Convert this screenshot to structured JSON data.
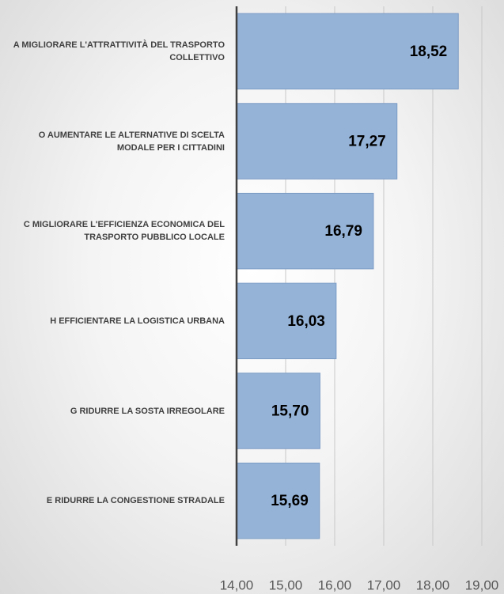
{
  "chart_data": {
    "type": "bar",
    "orientation": "horizontal",
    "categories": [
      "A MIGLIORARE L'ATTRATTIVITÀ DEL TRASPORTO COLLETTIVO",
      "O AUMENTARE LE ALTERNATIVE DI SCELTA MODALE PER I CITTADINI",
      "C MIGLIORARE L'EFFICIENZA ECONOMICA DEL TRASPORTO PUBBLICO LOCALE",
      "H EFFICIENTARE LA LOGISTICA URBANA",
      "G RIDURRE LA SOSTA IRREGOLARE",
      "E RIDURRE LA CONGESTIONE STRADALE"
    ],
    "values": [
      18.52,
      17.27,
      16.79,
      16.03,
      15.7,
      15.69
    ],
    "value_labels": [
      "18,52",
      "17,27",
      "16,79",
      "16,03",
      "15,70",
      "15,69"
    ],
    "color": "#95b3d7",
    "xlim": [
      14,
      19
    ],
    "xticks": [
      {
        "value": 14,
        "label": "14,00"
      },
      {
        "value": 15,
        "label": "15,00"
      },
      {
        "value": 16,
        "label": "16,00"
      },
      {
        "value": 17,
        "label": "17,00"
      },
      {
        "value": 18,
        "label": "18,00"
      },
      {
        "value": 19,
        "label": "19,00"
      }
    ],
    "grid": true
  }
}
